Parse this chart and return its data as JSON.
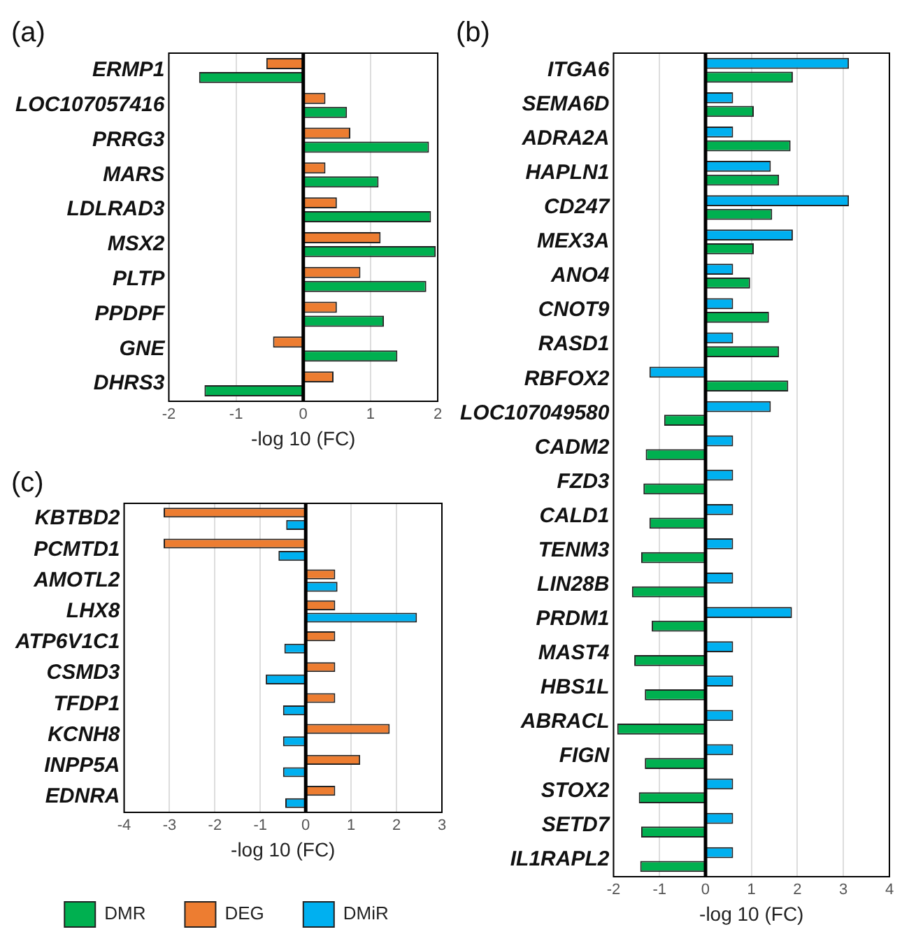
{
  "chart_data": [
    {
      "type": "bar",
      "orientation": "horizontal",
      "title": "(a)",
      "xlabel": "-log 10 (FC)",
      "categories": [
        "ERMP1",
        "LOC107057416",
        "PRRG3",
        "MARS",
        "LDLRAD3",
        "MSX2",
        "PLTP",
        "PPDPF",
        "GNE",
        "DHRS3"
      ],
      "xlim": [
        -2,
        2
      ],
      "xticks": [
        -2,
        -1,
        0,
        1,
        2
      ],
      "grid": "x",
      "legend": false,
      "ref_lines": [
        {
          "axis": "x",
          "value": 0,
          "color": "#000000"
        }
      ],
      "series": [
        {
          "color": "#ed7d31",
          "values": [
            -0.55,
            0.33,
            0.7,
            0.33,
            0.5,
            1.15,
            0.85,
            0.5,
            -0.45,
            0.45
          ]
        },
        {
          "color": "#00b050",
          "values": [
            -1.55,
            0.65,
            1.87,
            1.12,
            1.9,
            1.97,
            1.83,
            1.2,
            1.4,
            -1.47
          ]
        }
      ]
    },
    {
      "type": "bar",
      "orientation": "horizontal",
      "title": "(b)",
      "xlabel": "-log 10 (FC)",
      "categories": [
        "ITGA6",
        "SEMA6D",
        "ADRA2A",
        "HAPLN1",
        "CD247",
        "MEX3A",
        "ANO4",
        "CNOT9",
        "RASD1",
        "RBFOX2",
        "LOC107049580",
        "CADM2",
        "FZD3",
        "CALD1",
        "TENM3",
        "LIN28B",
        "PRDM1",
        "MAST4",
        "HBS1L",
        "ABRACL",
        "FIGN",
        "STOX2",
        "SETD7",
        "IL1RAPL2"
      ],
      "xlim": [
        -2,
        4
      ],
      "xticks": [
        -2,
        -1,
        0,
        1,
        2,
        3,
        4
      ],
      "grid": "x",
      "legend": false,
      "ref_lines": [
        {
          "axis": "x",
          "value": 0,
          "color": "#000000"
        }
      ],
      "series": [
        {
          "color": "#00b0f0",
          "values": [
            3.12,
            0.6,
            0.6,
            1.42,
            3.12,
            1.9,
            0.6,
            0.6,
            0.6,
            -1.22,
            1.42,
            0.6,
            0.6,
            0.6,
            0.6,
            0.6,
            1.88,
            0.6,
            0.6,
            0.6,
            0.6,
            0.6,
            0.6,
            0.6
          ]
        },
        {
          "color": "#00b050",
          "values": [
            1.9,
            1.05,
            1.85,
            1.6,
            1.45,
            1.05,
            0.97,
            1.38,
            1.6,
            1.8,
            -0.9,
            -1.3,
            -1.35,
            -1.22,
            -1.4,
            -1.6,
            -1.17,
            -1.55,
            -1.32,
            -1.92,
            -1.32,
            -1.45,
            -1.4,
            -1.42
          ]
        }
      ]
    },
    {
      "type": "bar",
      "orientation": "horizontal",
      "title": "(c)",
      "xlabel": "-log 10 (FC)",
      "categories": [
        "KBTBD2",
        "PCMTD1",
        "AMOTL2",
        "LHX8",
        "ATP6V1C1",
        "CSMD3",
        "TFDP1",
        "KCNH8",
        "INPP5A",
        "EDNRA"
      ],
      "xlim": [
        -4,
        3
      ],
      "xticks": [
        -4,
        -3,
        -2,
        -1,
        0,
        1,
        2,
        3
      ],
      "grid": "x",
      "legend": "bottom",
      "ref_lines": [
        {
          "axis": "x",
          "value": 0,
          "color": "#000000"
        }
      ],
      "series": [
        {
          "name": "DMR",
          "color": "#00b050",
          "values": [
            null,
            null,
            null,
            null,
            null,
            null,
            null,
            null,
            null,
            null
          ]
        },
        {
          "name": "DEG",
          "color": "#ed7d31",
          "values": [
            -3.13,
            -3.13,
            0.65,
            0.65,
            0.65,
            0.65,
            0.65,
            1.85,
            1.2,
            0.65
          ]
        },
        {
          "name": "DMiR",
          "color": "#00b0f0",
          "values": [
            -0.43,
            -0.6,
            0.7,
            2.45,
            -0.47,
            -0.88,
            -0.5,
            -0.5,
            -0.5,
            -0.45
          ]
        }
      ]
    }
  ]
}
